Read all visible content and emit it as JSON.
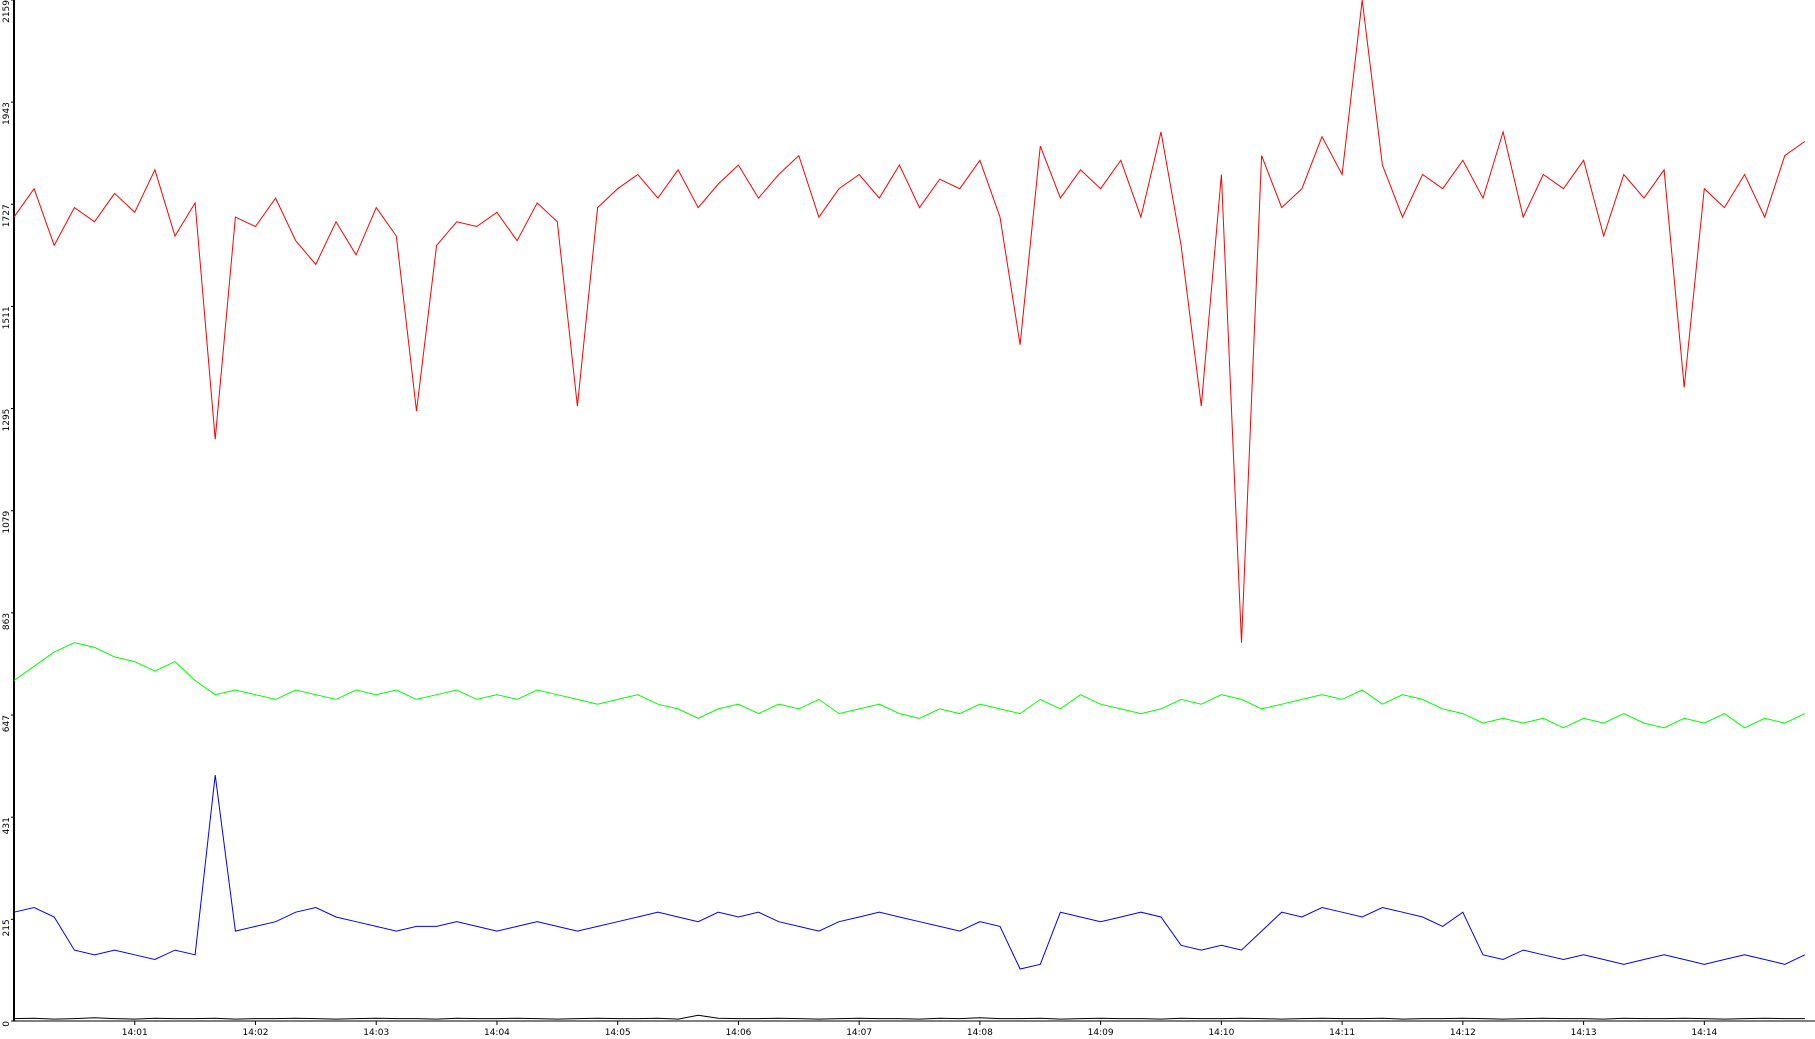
{
  "chart_data": {
    "type": "line",
    "categories": [
      null,
      null,
      null,
      null,
      null,
      null,
      "14:01",
      null,
      null,
      null,
      null,
      null,
      "14:02",
      null,
      null,
      null,
      null,
      null,
      "14:03",
      null,
      null,
      null,
      null,
      null,
      "14:04",
      null,
      null,
      null,
      null,
      null,
      "14:05",
      null,
      null,
      null,
      null,
      null,
      "14:06",
      null,
      null,
      null,
      null,
      null,
      "14:07",
      null,
      null,
      null,
      null,
      null,
      "14:08",
      null,
      null,
      null,
      null,
      null,
      "14:09",
      null,
      null,
      null,
      null,
      null,
      "14:10",
      null,
      null,
      null,
      null,
      null,
      "14:11",
      null,
      null,
      null,
      null,
      null,
      "14:12",
      null,
      null,
      null,
      null,
      null,
      "14:13",
      null,
      null,
      null,
      null,
      null,
      "14:14",
      null,
      null,
      null,
      null,
      null
    ],
    "ylim": [
      0,
      2159
    ],
    "yticks": [
      0,
      215,
      431,
      647,
      863,
      1079,
      1295,
      1511,
      1727,
      1943,
      2159
    ],
    "grid": false,
    "series": [
      {
        "color": "#ff0000",
        "values": [
          1700,
          1760,
          1640,
          1720,
          1690,
          1750,
          1710,
          1800,
          1660,
          1730,
          1230,
          1700,
          1680,
          1740,
          1650,
          1600,
          1690,
          1620,
          1720,
          1660,
          1290,
          1640,
          1690,
          1680,
          1710,
          1650,
          1730,
          1690,
          1300,
          1720,
          1760,
          1790,
          1740,
          1800,
          1720,
          1770,
          1810,
          1740,
          1790,
          1830,
          1700,
          1760,
          1790,
          1740,
          1810,
          1720,
          1780,
          1760,
          1820,
          1700,
          1430,
          1850,
          1740,
          1800,
          1760,
          1820,
          1700,
          1880,
          1640,
          1300,
          1790,
          800,
          1830,
          1720,
          1760,
          1870,
          1790,
          2159,
          1810,
          1700,
          1790,
          1760,
          1820,
          1740,
          1880,
          1700,
          1790,
          1760,
          1820,
          1660,
          1790,
          1740,
          1800,
          1340,
          1760,
          1720,
          1790,
          1700,
          1830,
          1860
        ]
      },
      {
        "color": "#00ff00",
        "values": [
          720,
          750,
          780,
          800,
          790,
          770,
          760,
          740,
          760,
          720,
          690,
          700,
          690,
          680,
          700,
          690,
          680,
          700,
          690,
          700,
          680,
          690,
          700,
          680,
          690,
          680,
          700,
          690,
          680,
          670,
          680,
          690,
          670,
          660,
          640,
          660,
          670,
          650,
          670,
          660,
          680,
          650,
          660,
          670,
          650,
          640,
          660,
          650,
          670,
          660,
          650,
          680,
          660,
          690,
          670,
          660,
          650,
          660,
          680,
          670,
          690,
          680,
          660,
          670,
          680,
          690,
          680,
          700,
          670,
          690,
          680,
          660,
          650,
          630,
          640,
          630,
          640,
          620,
          640,
          630,
          650,
          630,
          620,
          640,
          630,
          650,
          620,
          640,
          630,
          650
        ]
      },
      {
        "color": "#0000ff",
        "values": [
          230,
          240,
          220,
          150,
          140,
          150,
          140,
          130,
          150,
          140,
          520,
          190,
          200,
          210,
          230,
          240,
          220,
          210,
          200,
          190,
          200,
          200,
          210,
          200,
          190,
          200,
          210,
          200,
          190,
          200,
          210,
          220,
          230,
          220,
          210,
          230,
          220,
          230,
          210,
          200,
          190,
          210,
          220,
          230,
          220,
          210,
          200,
          190,
          210,
          200,
          110,
          120,
          230,
          220,
          210,
          220,
          230,
          220,
          160,
          150,
          160,
          150,
          190,
          230,
          220,
          240,
          230,
          220,
          240,
          230,
          220,
          200,
          230,
          140,
          130,
          150,
          140,
          130,
          140,
          130,
          120,
          130,
          140,
          130,
          120,
          130,
          140,
          130,
          120,
          140
        ]
      },
      {
        "color": "#000000",
        "values": [
          5,
          6,
          4,
          5,
          7,
          5,
          4,
          6,
          5,
          5,
          6,
          4,
          5,
          5,
          6,
          5,
          4,
          5,
          6,
          5,
          5,
          4,
          6,
          5,
          5,
          6,
          5,
          4,
          5,
          6,
          5,
          5,
          6,
          4,
          12,
          6,
          5,
          5,
          6,
          5,
          4,
          5,
          6,
          5,
          5,
          4,
          6,
          5,
          7,
          5,
          5,
          6,
          4,
          5,
          6,
          5,
          5,
          4,
          6,
          5,
          5,
          6,
          5,
          4,
          5,
          6,
          5,
          5,
          6,
          4,
          5,
          5,
          6,
          5,
          4,
          5,
          6,
          5,
          5,
          4,
          6,
          5,
          5,
          6,
          5,
          4,
          5,
          6,
          5,
          5
        ]
      }
    ]
  }
}
